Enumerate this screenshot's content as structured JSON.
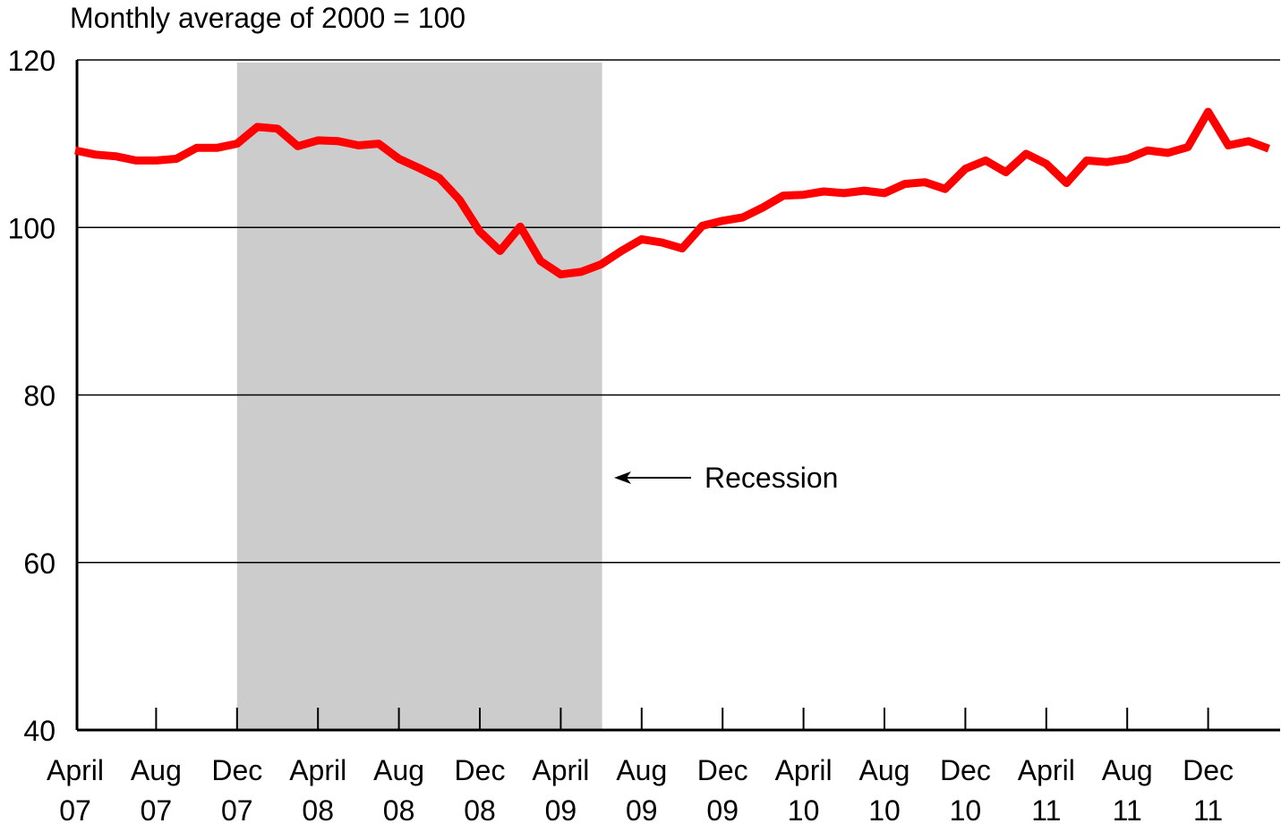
{
  "chart_data": {
    "type": "line",
    "ylabel": "Monthly average of 2000 = 100",
    "ylim": [
      40,
      120
    ],
    "yticks": [
      "40",
      "60",
      "80",
      "100",
      "120"
    ],
    "xtick_labels": [
      [
        "April",
        "07"
      ],
      [
        "Aug",
        "07"
      ],
      [
        "Dec",
        "07"
      ],
      [
        "April",
        "08"
      ],
      [
        "Aug",
        "08"
      ],
      [
        "Dec",
        "08"
      ],
      [
        "April",
        "09"
      ],
      [
        "Aug",
        "09"
      ],
      [
        "Dec",
        "09"
      ],
      [
        "April",
        "10"
      ],
      [
        "Aug",
        "10"
      ],
      [
        "Dec",
        "10"
      ],
      [
        "April",
        "11"
      ],
      [
        "Aug",
        "11"
      ],
      [
        "Dec",
        "11"
      ]
    ],
    "grid": true,
    "recession": {
      "start_month": "2007-12",
      "end_month": "2009-06",
      "label": "Recession"
    },
    "x_start_month": "2007-04",
    "series": [
      {
        "color": "#ff0000",
        "values": [
          109.2,
          108.7,
          108.5,
          108.0,
          108.0,
          108.2,
          109.5,
          109.5,
          110.0,
          112.0,
          111.8,
          109.7,
          110.4,
          110.3,
          109.8,
          110.0,
          108.2,
          107.1,
          105.9,
          103.3,
          99.5,
          97.2,
          100.1,
          96.0,
          94.4,
          94.7,
          95.6,
          97.2,
          98.6,
          98.2,
          97.5,
          100.2,
          100.8,
          101.2,
          102.4,
          103.8,
          103.9,
          104.3,
          104.1,
          104.4,
          104.1,
          105.2,
          105.4,
          104.6,
          107.0,
          108.0,
          106.6,
          108.8,
          107.6,
          105.3,
          108.0,
          107.8,
          108.2,
          109.2,
          108.9,
          109.6,
          113.8,
          109.8,
          110.3,
          109.4
        ]
      }
    ]
  }
}
